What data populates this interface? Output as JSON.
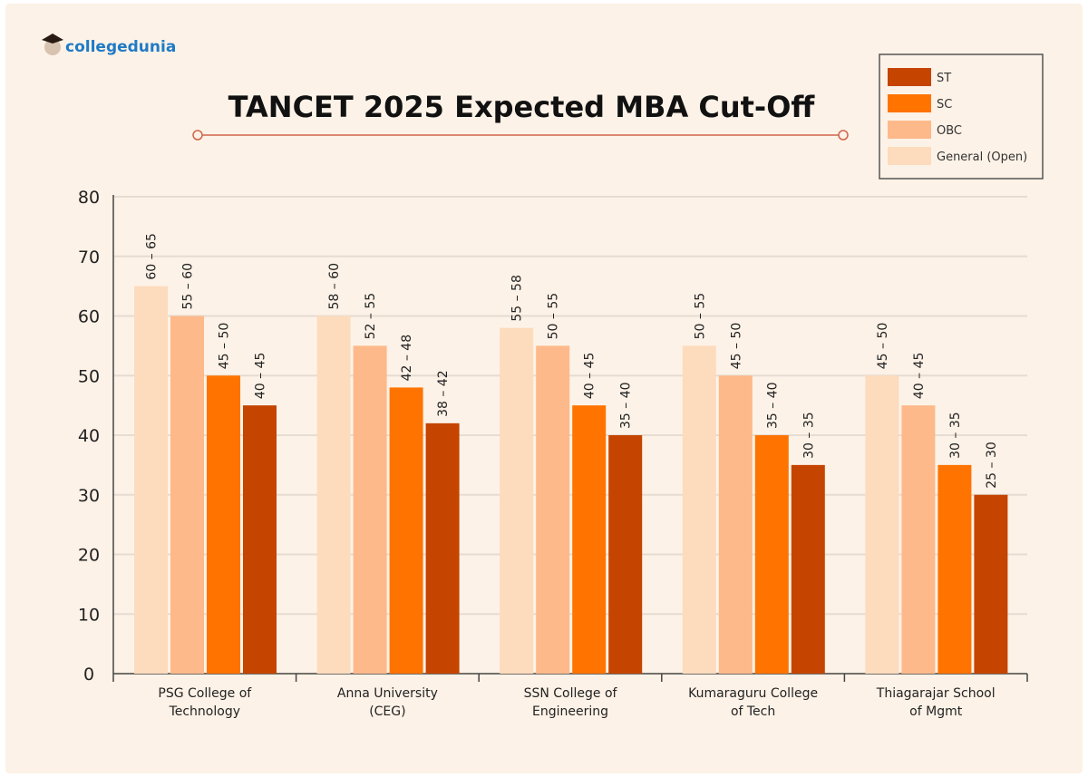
{
  "brand": {
    "name": "collegedunia",
    "color": "#1f7bc6"
  },
  "chart_data": {
    "type": "bar",
    "title": "TANCET 2025 Expected MBA Cut-Off",
    "categories": [
      [
        "PSG College of",
        "Technology"
      ],
      [
        "Anna University",
        "(CEG)"
      ],
      [
        "SSN College of",
        "Engineering"
      ],
      [
        "Kumaraguru College",
        "of Tech"
      ],
      [
        "Thiagarajar School",
        "of Mgmt"
      ]
    ],
    "series": [
      {
        "name": "General (Open)",
        "color": "#fddbbd",
        "ranges": [
          [
            60,
            65
          ],
          [
            58,
            60
          ],
          [
            55,
            58
          ],
          [
            50,
            55
          ],
          [
            45,
            50
          ]
        ],
        "labels": [
          "60 – 65",
          "58 – 60",
          "55 – 58",
          "50 – 55",
          "45 – 50"
        ]
      },
      {
        "name": "OBC",
        "color": "#fdb98a",
        "ranges": [
          [
            55,
            60
          ],
          [
            52,
            55
          ],
          [
            50,
            55
          ],
          [
            45,
            50
          ],
          [
            40,
            45
          ]
        ],
        "labels": [
          "55 – 60",
          "52 – 55",
          "50 – 55",
          "45 – 50",
          "40 – 45"
        ]
      },
      {
        "name": "SC",
        "color": "#ff7300",
        "ranges": [
          [
            45,
            50
          ],
          [
            42,
            48
          ],
          [
            40,
            45
          ],
          [
            35,
            40
          ],
          [
            30,
            35
          ]
        ],
        "labels": [
          "45 – 50",
          "42 – 48",
          "40 – 45",
          "35 – 40",
          "30 – 35"
        ]
      },
      {
        "name": "ST",
        "color": "#c44400",
        "ranges": [
          [
            40,
            45
          ],
          [
            38,
            42
          ],
          [
            35,
            40
          ],
          [
            30,
            35
          ],
          [
            25,
            30
          ]
        ],
        "labels": [
          "40 – 45",
          "38 – 42",
          "35 – 40",
          "30 – 35",
          "25 – 30"
        ]
      }
    ],
    "legend_order": [
      "ST",
      "SC",
      "OBC",
      "General (Open)"
    ],
    "yticks": [
      "0",
      "10",
      "20",
      "30",
      "40",
      "50",
      "60",
      "70",
      "80"
    ],
    "ylim": [
      0,
      80
    ],
    "grid": true,
    "legend_position": "top-right",
    "xlabel": "",
    "ylabel": ""
  }
}
